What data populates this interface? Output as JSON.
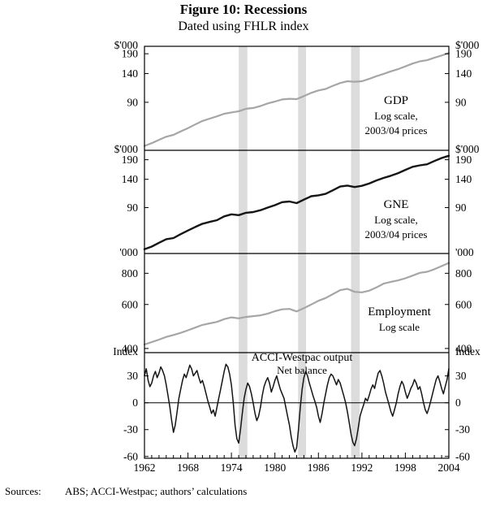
{
  "figure": {
    "title": "Figure 10: Recessions",
    "subtitle": "Dated using FHLR index",
    "sources_label": "Sources:",
    "sources_text": "ABS; ACCI-Westpac; authors’ calculations"
  },
  "chart_data": {
    "type": "line",
    "x_range": [
      1962,
      2004
    ],
    "x_ticks": [
      1962,
      1968,
      1974,
      1980,
      1986,
      1992,
      1998,
      2004
    ],
    "recession_bands": [
      [
        1975.0,
        1976.2
      ],
      [
        1983.2,
        1984.3
      ],
      [
        1990.5,
        1991.7
      ]
    ],
    "band_color": "#dcdcdc",
    "panels": [
      {
        "name": "GDP",
        "unit_label": "$'000",
        "annotation": [
          "GDP",
          "Log scale,",
          "2003/04 prices"
        ],
        "scale": "log",
        "y_ticks": [
          90,
          140,
          190
        ],
        "y_range": [
          43,
          213
        ],
        "line_color": "#a6a6a6",
        "x_start": 1962,
        "x_step": 1,
        "values": [
          46,
          48,
          50.5,
          53,
          54.5,
          57.5,
          60.5,
          64,
          67.5,
          70,
          72.5,
          75.5,
          77,
          78.5,
          81.5,
          82.5,
          85,
          88.5,
          91,
          94,
          95,
          94.5,
          99,
          104,
          108,
          110.5,
          116,
          121,
          124.5,
          123.5,
          124.5,
          129,
          134.5,
          139.5,
          145,
          150,
          156.5,
          163.5,
          169,
          172,
          178.5,
          185,
          192
        ]
      },
      {
        "name": "GNE",
        "unit_label": "$'000",
        "annotation": [
          "GNE",
          "Log scale,",
          "2003/04 prices"
        ],
        "scale": "log",
        "y_ticks": [
          90,
          140,
          190
        ],
        "y_range": [
          44,
          220
        ],
        "line_color": "#151515",
        "x_start": 1962,
        "x_step": 1,
        "values": [
          47,
          49,
          52,
          55,
          56,
          59.5,
          63,
          66.5,
          70,
          72,
          74,
          78.5,
          81,
          80,
          83,
          84,
          86.5,
          90,
          93.5,
          98,
          99,
          96.5,
          102,
          107.5,
          109,
          111.5,
          118,
          125,
          127,
          124,
          126.5,
          131,
          137.5,
          143,
          148,
          154,
          162,
          170,
          174,
          177,
          186,
          195,
          202
        ]
      },
      {
        "name": "Employment",
        "unit_label": "'000",
        "annotation": [
          "Employment",
          "Log scale"
        ],
        "scale": "log",
        "y_ticks": [
          400,
          600,
          800
        ],
        "y_range": [
          385,
          960
        ],
        "line_color": "#a6a6a6",
        "x_start": 1962,
        "x_step": 1,
        "values": [
          415,
          424,
          434,
          445,
          453,
          462,
          473,
          485,
          497,
          504,
          511,
          524,
          533,
          528,
          535,
          539,
          543,
          551,
          564,
          574,
          576,
          563,
          580,
          600,
          621,
          637,
          660,
          685,
          693,
          674,
          671,
          681,
          702,
          727,
          739,
          749,
          764,
          783,
          803,
          811,
          830,
          855,
          880
        ]
      },
      {
        "name": "ACCI-Westpac output",
        "unit_label": "Index",
        "annotation": [
          "ACCI-Westpac output",
          "Net balance"
        ],
        "scale": "linear",
        "y_ticks": [
          -60,
          -30,
          0,
          30
        ],
        "y_range": [
          -62,
          56
        ],
        "zero_line": true,
        "line_color": "#151515",
        "x_start": 1962,
        "x_step": 0.25,
        "values": [
          30,
          38,
          25,
          18,
          22,
          30,
          35,
          28,
          33,
          40,
          36,
          30,
          20,
          8,
          -5,
          -20,
          -33,
          -25,
          -10,
          5,
          15,
          25,
          32,
          28,
          35,
          42,
          38,
          30,
          33,
          36,
          28,
          22,
          25,
          18,
          10,
          2,
          -5,
          -12,
          -8,
          -15,
          -5,
          5,
          15,
          25,
          35,
          43,
          40,
          32,
          20,
          0,
          -25,
          -40,
          -45,
          -30,
          -12,
          5,
          15,
          22,
          18,
          10,
          0,
          -12,
          -20,
          -15,
          -5,
          8,
          18,
          24,
          28,
          22,
          12,
          18,
          25,
          30,
          22,
          15,
          10,
          5,
          -5,
          -15,
          -25,
          -38,
          -48,
          -55,
          -50,
          -30,
          -5,
          15,
          28,
          35,
          30,
          22,
          15,
          8,
          2,
          -5,
          -15,
          -22,
          -12,
          0,
          10,
          20,
          28,
          32,
          30,
          25,
          20,
          26,
          22,
          15,
          8,
          0,
          -10,
          -22,
          -35,
          -44,
          -48,
          -40,
          -28,
          -15,
          -8,
          -2,
          5,
          2,
          8,
          15,
          20,
          16,
          25,
          33,
          36,
          30,
          22,
          12,
          5,
          -2,
          -10,
          -15,
          -8,
          0,
          10,
          18,
          24,
          20,
          12,
          5,
          10,
          16,
          20,
          26,
          22,
          15,
          18,
          10,
          0,
          -8,
          -12,
          -6,
          2,
          10,
          18,
          26,
          30,
          24,
          16,
          10,
          18,
          26,
          38
        ]
      }
    ]
  }
}
